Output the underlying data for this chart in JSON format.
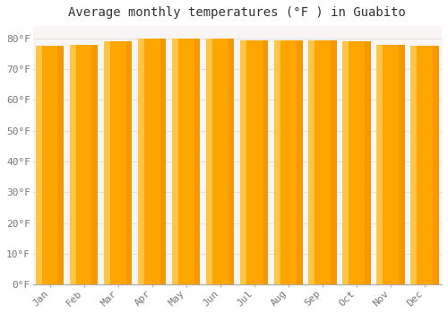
{
  "title": "Average monthly temperatures (°F ) in Guabito",
  "months": [
    "Jan",
    "Feb",
    "Mar",
    "Apr",
    "May",
    "Jun",
    "Jul",
    "Aug",
    "Sep",
    "Oct",
    "Nov",
    "Dec"
  ],
  "values": [
    77.5,
    78.0,
    79.0,
    79.8,
    80.0,
    79.8,
    79.5,
    79.5,
    79.5,
    79.0,
    78.0,
    77.5
  ],
  "bar_color_main": "#FFA500",
  "bar_color_light": "#FFD060",
  "bar_color_dark": "#E08000",
  "background_color": "#ffffff",
  "plot_bg_color": "#faf5f5",
  "ylim": [
    0,
    84
  ],
  "ytick_values": [
    0,
    10,
    20,
    30,
    40,
    50,
    60,
    70,
    80
  ],
  "ytick_labels": [
    "0°F",
    "10°F",
    "20°F",
    "30°F",
    "40°F",
    "50°F",
    "60°F",
    "70°F",
    "80°F"
  ],
  "title_fontsize": 10,
  "tick_fontsize": 8,
  "grid_color": "#e0e0e0",
  "bar_width": 0.82
}
